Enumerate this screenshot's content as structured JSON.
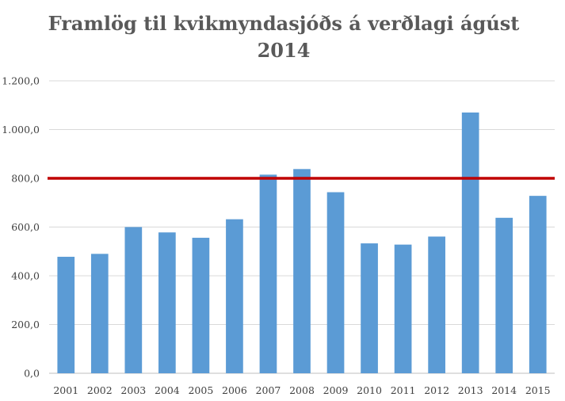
{
  "chart_data": {
    "type": "bar",
    "title_lines": [
      "Framlög til kvikmyndasjóðs á verðlagi ágúst",
      "2014"
    ],
    "categories": [
      "2001",
      "2002",
      "2003",
      "2004",
      "2005",
      "2006",
      "2007",
      "2008",
      "2009",
      "2010",
      "2011",
      "2012",
      "2013",
      "2014",
      "2015"
    ],
    "values": [
      478,
      490,
      600,
      578,
      556,
      632,
      815,
      838,
      743,
      533,
      528,
      561,
      1070,
      638,
      728
    ],
    "ylim": [
      0,
      1200
    ],
    "y_ticks": [
      0,
      200,
      400,
      600,
      800,
      1000,
      1200
    ],
    "y_tick_labels": [
      "0,0",
      "200,0",
      "400,0",
      "600,0",
      "800,0",
      "1.000,0",
      "1.200,0"
    ],
    "reference_line": {
      "value": 800,
      "color": "#c00000"
    },
    "bar_color": "#5b9bd5",
    "grid": true,
    "legend": "none"
  }
}
